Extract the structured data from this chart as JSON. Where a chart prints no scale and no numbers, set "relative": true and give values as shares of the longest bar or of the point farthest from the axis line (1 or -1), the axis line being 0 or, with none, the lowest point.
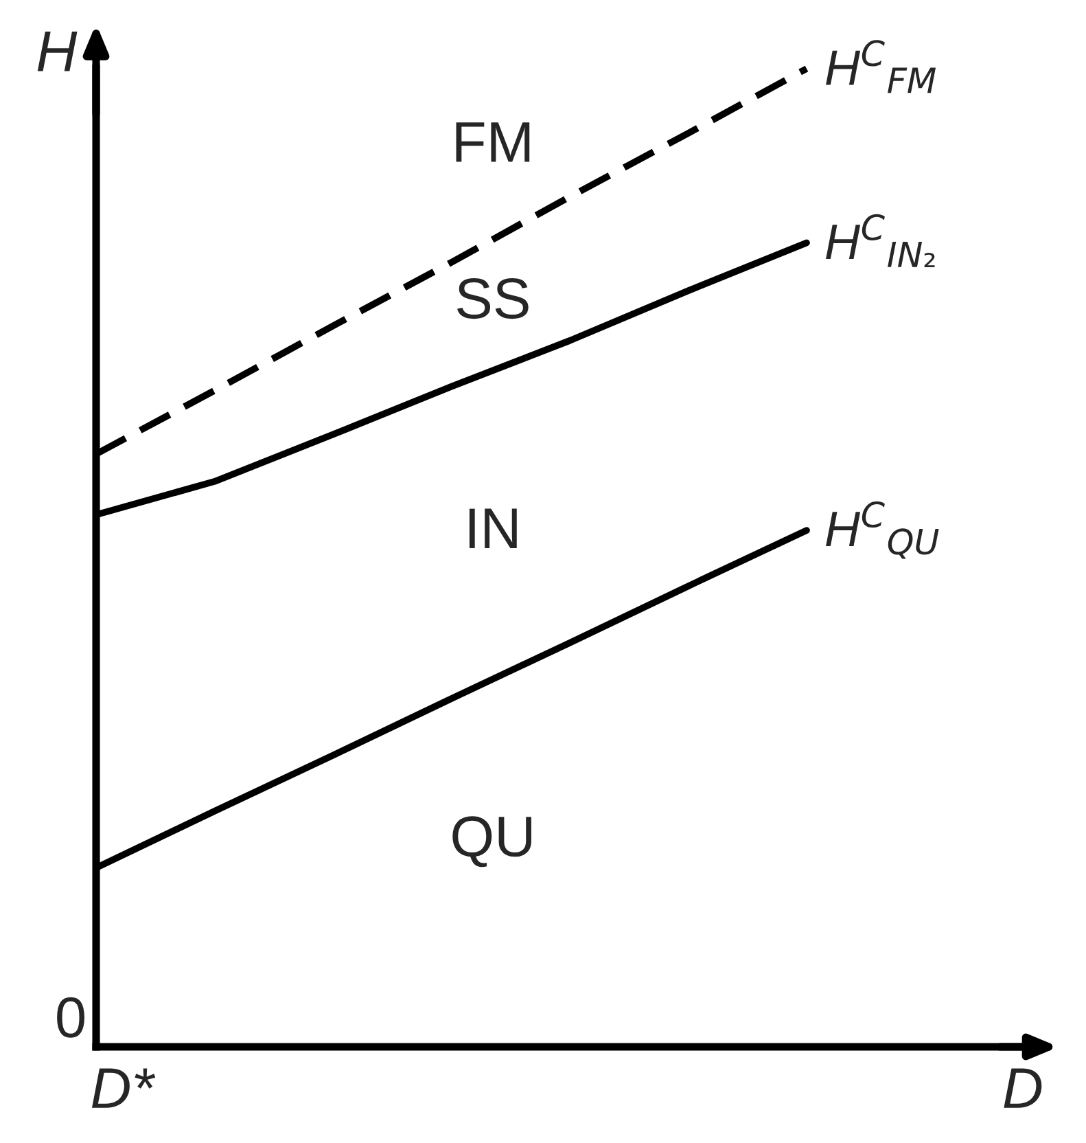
{
  "chart_data": {
    "type": "line",
    "relative": true,
    "categories": [
      null,
      null,
      null,
      null,
      null,
      null,
      null
    ],
    "xlabel": "D",
    "ylabel": "H",
    "legend": false,
    "marker": "none",
    "series": [
      {
        "name": "H$^{C}$$_{FM}$",
        "color": "#000000",
        "line_style": "dashed",
        "values": [
          0.606,
          0.671,
          0.737,
          0.802,
          0.869,
          0.934,
          1.0
        ]
      },
      {
        "name": "H$^{C}$$_{IN₂}$",
        "color": "#000000",
        "line_style": "solid",
        "values": [
          0.544,
          0.578,
          0.626,
          0.675,
          0.722,
          0.773,
          0.822
        ]
      },
      {
        "name": "H$^{C}$$_{QU}$",
        "color": "#000000",
        "line_style": "solid",
        "values": [
          0.183,
          0.241,
          0.298,
          0.356,
          0.413,
          0.471,
          0.528
        ]
      }
    ],
    "annotations": [
      "FM",
      "SS",
      "IN",
      "QU",
      "0",
      "D*"
    ]
  }
}
